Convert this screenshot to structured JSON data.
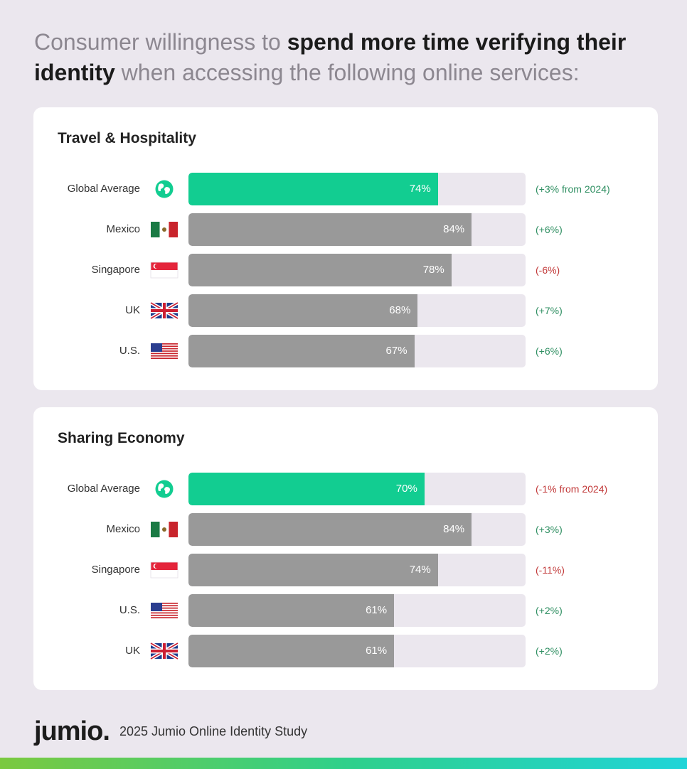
{
  "headline": {
    "part1": "Consumer willingness to ",
    "bold1": "spend more time verifying their identity",
    "part2": " when accessing the following online services:"
  },
  "chart_data": [
    {
      "type": "bar",
      "title": "Travel & Hospitality",
      "unit": "%",
      "xlim": [
        0,
        100
      ],
      "rows": [
        {
          "label": "Global Average",
          "icon": "globe-icon",
          "value": 74,
          "display": "74%",
          "change": "(+3% from 2024)",
          "change_sign": "pos",
          "highlight": true
        },
        {
          "label": "Mexico",
          "icon": "mexico-flag-icon",
          "value": 84,
          "display": "84%",
          "change": "(+6%)",
          "change_sign": "pos",
          "highlight": false
        },
        {
          "label": "Singapore",
          "icon": "singapore-flag-icon",
          "value": 78,
          "display": "78%",
          "change": "(-6%)",
          "change_sign": "neg",
          "highlight": false
        },
        {
          "label": "UK",
          "icon": "uk-flag-icon",
          "value": 68,
          "display": "68%",
          "change": "(+7%)",
          "change_sign": "pos",
          "highlight": false
        },
        {
          "label": "U.S.",
          "icon": "us-flag-icon",
          "value": 67,
          "display": "67%",
          "change": "(+6%)",
          "change_sign": "pos",
          "highlight": false
        }
      ]
    },
    {
      "type": "bar",
      "title": "Sharing Economy",
      "unit": "%",
      "xlim": [
        0,
        100
      ],
      "rows": [
        {
          "label": "Global Average",
          "icon": "globe-icon",
          "value": 70,
          "display": "70%",
          "change": "(-1% from 2024)",
          "change_sign": "neg",
          "highlight": true
        },
        {
          "label": "Mexico",
          "icon": "mexico-flag-icon",
          "value": 84,
          "display": "84%",
          "change": "(+3%)",
          "change_sign": "pos",
          "highlight": false
        },
        {
          "label": "Singapore",
          "icon": "singapore-flag-icon",
          "value": 74,
          "display": "74%",
          "change": "(-11%)",
          "change_sign": "neg",
          "highlight": false
        },
        {
          "label": "U.S.",
          "icon": "us-flag-icon",
          "value": 61,
          "display": "61%",
          "change": "(+2%)",
          "change_sign": "pos",
          "highlight": false
        },
        {
          "label": "UK",
          "icon": "uk-flag-icon",
          "value": 61,
          "display": "61%",
          "change": "(+2%)",
          "change_sign": "pos",
          "highlight": false
        }
      ]
    }
  ],
  "colors": {
    "highlight_bar": "#12cd91",
    "bar": "#999999",
    "track": "#ebe7ee",
    "positive": "#2f8f62",
    "negative": "#c23a3a"
  },
  "footer": {
    "logo": "jumio.",
    "source": "2025 Jumio Online Identity Study"
  }
}
